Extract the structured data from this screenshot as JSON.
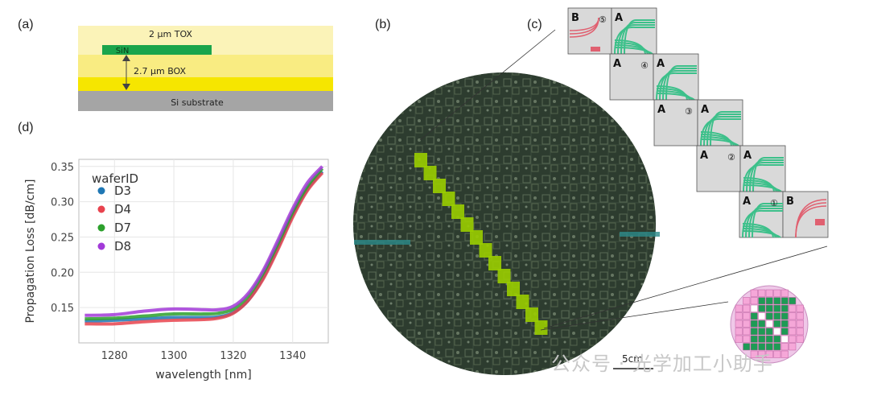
{
  "panels": {
    "a": "(a)",
    "b": "(b)",
    "c": "(c)",
    "d": "(d)"
  },
  "stack": {
    "tox": "2 µm TOX",
    "core": "SiN",
    "box": "2.7 µm BOX",
    "substrate": "Si substrate"
  },
  "chart_data": {
    "type": "line",
    "xlabel": "wavelength [nm]",
    "ylabel": "Propagation Loss [dB/cm]",
    "xlim": [
      1268,
      1352
    ],
    "ylim": [
      0.1,
      0.36
    ],
    "xticks": [
      1280,
      1300,
      1320,
      1340
    ],
    "yticks": [
      0.15,
      0.2,
      0.25,
      0.3,
      0.35
    ],
    "grid": true,
    "legend_title": "waferID",
    "legend_position": "top-left",
    "x": [
      1270,
      1280,
      1290,
      1300,
      1310,
      1315,
      1320,
      1325,
      1330,
      1335,
      1340,
      1345,
      1350
    ],
    "series": [
      {
        "name": "D3",
        "color": "#1f77b4",
        "values": [
          0.131,
          0.132,
          0.134,
          0.136,
          0.136,
          0.137,
          0.143,
          0.16,
          0.192,
          0.235,
          0.281,
          0.318,
          0.343
        ]
      },
      {
        "name": "D4",
        "color": "#e8434e",
        "values": [
          0.127,
          0.127,
          0.13,
          0.132,
          0.133,
          0.135,
          0.142,
          0.16,
          0.19,
          0.232,
          0.278,
          0.316,
          0.341
        ]
      },
      {
        "name": "D7",
        "color": "#2ca02c",
        "values": [
          0.134,
          0.135,
          0.138,
          0.141,
          0.141,
          0.142,
          0.148,
          0.166,
          0.198,
          0.24,
          0.285,
          0.322,
          0.347
        ]
      },
      {
        "name": "D8",
        "color": "#a23ad8",
        "values": [
          0.139,
          0.14,
          0.145,
          0.148,
          0.147,
          0.147,
          0.152,
          0.17,
          0.202,
          0.245,
          0.29,
          0.327,
          0.35
        ]
      }
    ]
  },
  "wafer": {
    "scale_label": "5cm"
  },
  "reticles": {
    "label_a": "A",
    "label_b": "B",
    "markers": [
      "⑤",
      "④",
      "③",
      "②",
      "①"
    ]
  },
  "watermark": "公众号 · 光学加工小助手"
}
